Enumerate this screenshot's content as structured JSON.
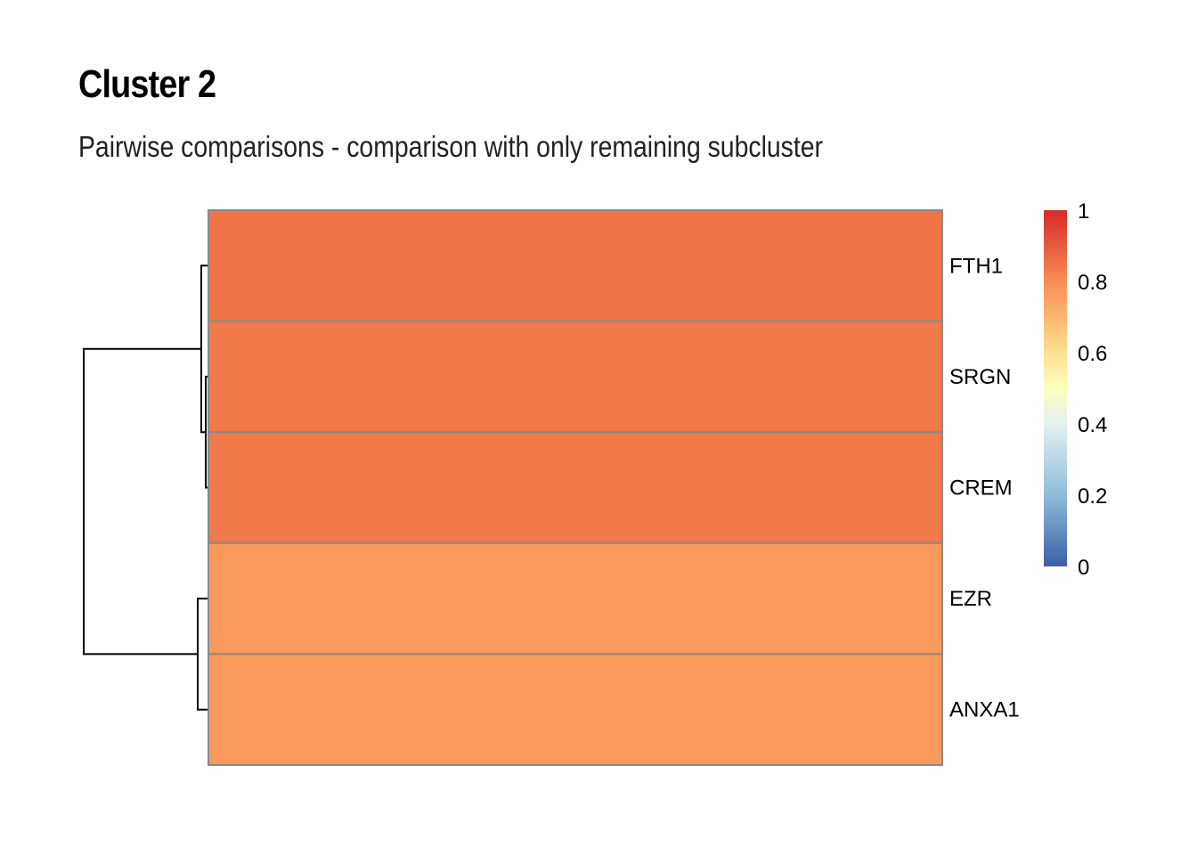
{
  "chart_data": {
    "type": "heatmap",
    "title": "Cluster 2",
    "subtitle": "Pairwise comparisons - comparison with only remaining subcluster",
    "rows": [
      "FTH1",
      "SRGN",
      "CREM",
      "EZR",
      "ANXA1"
    ],
    "columns": [
      ""
    ],
    "values": [
      [
        0.85
      ],
      [
        0.84
      ],
      [
        0.84
      ],
      [
        0.77
      ],
      [
        0.77
      ]
    ],
    "color_scale": {
      "min": 0,
      "max": 1,
      "stops": [
        {
          "value": 0.0,
          "color": "#3b5fa8"
        },
        {
          "value": 0.2,
          "color": "#8fbcd9"
        },
        {
          "value": 0.4,
          "color": "#e2f1f2"
        },
        {
          "value": 0.5,
          "color": "#fefebb"
        },
        {
          "value": 0.6,
          "color": "#fee090"
        },
        {
          "value": 0.8,
          "color": "#f88d52"
        },
        {
          "value": 1.0,
          "color": "#d62a2a"
        }
      ],
      "ticks": [
        "0",
        "0.2",
        "0.4",
        "0.6",
        "0.8",
        "1"
      ]
    },
    "dendrogram": "rows: ((FTH1, (SRGN, CREM)), (EZR, ANXA1))",
    "legend_placement": "right",
    "grid": true
  }
}
